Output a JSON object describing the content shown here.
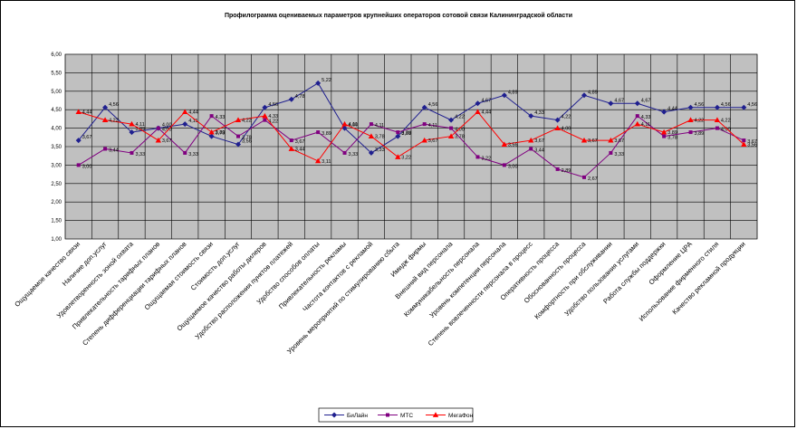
{
  "chart_data": {
    "type": "line",
    "title": "Профилограмма оцениваемых параметров крупнейших операторов сотовой связи Калининградской области",
    "xlabel": "",
    "ylabel": "",
    "ylim": [
      1,
      6
    ],
    "yticks": [
      "1,00",
      "1,50",
      "2,00",
      "2,50",
      "3,00",
      "3,50",
      "4,00",
      "4,50",
      "5,00",
      "5,50",
      "6,00"
    ],
    "grid": true,
    "legend_position": "bottom",
    "categories": [
      "Ощущаемое качество связи",
      "Наличие доп.услуг",
      "Удовлетворенность зоной охвата",
      "Привлекательность тарифных планов",
      "Степень дифференциации тарифных планов",
      "Ощущаемая стоимость связи",
      "Стоимость доп.услуг",
      "Ощущаемое качество работы дилеров",
      "Удобство расположения пунктов платежей",
      "Удобство способов оплаты",
      "Привлекательность рекламы",
      "Частота контактов с рекламой",
      "Уровень мероприятий по стимулированию сбыта",
      "Имидж фирмы",
      "Внешний вид персонала",
      "Коммуникабельность персонала",
      "Уровень компетенции персонала",
      "Степень вовлеченности персонала в процесс",
      "Оперативность процесса",
      "Обоснованность процесса",
      "Комфортность при обслуживании",
      "Удобство пользования услугами",
      "Работа службы поддержки",
      "Оформление ЦРА",
      "Использование фирменного стиля",
      "Качество рекламной продукции"
    ],
    "series": [
      {
        "name": "БиЛайн",
        "color": "#1f1f8f",
        "marker": "diamond",
        "values": [
          3.67,
          4.56,
          3.89,
          4.0,
          4.11,
          3.78,
          3.56,
          4.56,
          4.78,
          5.22,
          4.0,
          3.33,
          3.78,
          4.56,
          4.22,
          4.67,
          4.89,
          4.33,
          4.22,
          4.89,
          4.67,
          4.67,
          4.44,
          4.56,
          4.56,
          4.56
        ],
        "labels": [
          "3,67",
          "4,56",
          "3,89",
          "4,00",
          "4,11",
          "3,78",
          "3,56",
          "4,56",
          "4,78",
          "5,22",
          "4,00",
          "3,33",
          "3,78",
          "4,56",
          "4,22",
          "4,67",
          "4,89",
          "4,33",
          "4,22",
          "4,89",
          "4,67",
          "4,67",
          "4,44",
          "4,56",
          "4,56",
          "4,56"
        ]
      },
      {
        "name": "МТС",
        "color": "#800080",
        "marker": "square",
        "values": [
          3.0,
          3.44,
          3.33,
          4.0,
          3.33,
          4.33,
          3.78,
          4.22,
          3.67,
          3.89,
          3.33,
          4.11,
          3.89,
          4.11,
          4.0,
          3.22,
          3.0,
          3.44,
          2.89,
          2.67,
          3.33,
          4.33,
          3.78,
          3.89,
          4.0,
          3.67
        ],
        "labels": [
          "3,00",
          "3,44",
          "3,33",
          "4,00",
          "3,33",
          "4,33",
          "3,78",
          "4,22",
          "3,67",
          "3,89",
          "3,33",
          "4,11",
          "3,89",
          "4,11",
          "4,00",
          "3,22",
          "3,00",
          "3,44",
          "2,89",
          "2,67",
          "3,33",
          "4,33",
          "3,78",
          "3,89",
          "4,00",
          "3,67"
        ]
      },
      {
        "name": "МегаФон",
        "color": "#ff0000",
        "marker": "triangle",
        "values": [
          4.44,
          4.22,
          4.11,
          3.67,
          4.44,
          3.89,
          4.22,
          4.33,
          3.44,
          3.11,
          4.11,
          3.78,
          3.22,
          3.67,
          3.78,
          4.44,
          3.56,
          3.67,
          4.0,
          3.67,
          3.67,
          4.11,
          3.89,
          4.22,
          4.22,
          3.56
        ],
        "labels": [
          "4,44",
          "4,22",
          "4,11",
          "3,67",
          "4,44",
          "3,89",
          "4,22",
          "4,33",
          "3,44",
          "3,11",
          "4,11",
          "3,78",
          "3,22",
          "3,67",
          "3,78",
          "4,44",
          "3,56",
          "3,67",
          "4,00",
          "3,67",
          "3,67",
          "4,11",
          "3,89",
          "4,22",
          "4,22",
          "3,56"
        ]
      }
    ]
  }
}
